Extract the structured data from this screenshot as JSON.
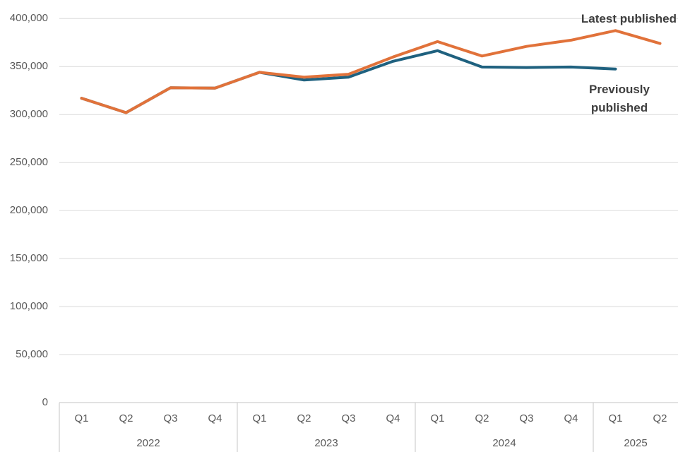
{
  "chart_data": {
    "type": "line",
    "x": [
      "Q1 2022",
      "Q2 2022",
      "Q3 2022",
      "Q4 2022",
      "Q1 2023",
      "Q2 2023",
      "Q3 2023",
      "Q4 2023",
      "Q1 2024",
      "Q2 2024",
      "Q3 2024",
      "Q4 2024",
      "Q1 2025",
      "Q2 2025"
    ],
    "x_groups": [
      {
        "year": "2022",
        "quarters": [
          "Q1",
          "Q2",
          "Q3",
          "Q4"
        ]
      },
      {
        "year": "2023",
        "quarters": [
          "Q1",
          "Q2",
          "Q3",
          "Q4"
        ]
      },
      {
        "year": "2024",
        "quarters": [
          "Q1",
          "Q2",
          "Q3",
          "Q4"
        ]
      },
      {
        "year": "2025",
        "quarters": [
          "Q1",
          "Q2"
        ]
      }
    ],
    "series": [
      {
        "name": "Latest published",
        "color": "#e1723a",
        "values": [
          317000,
          302000,
          328000,
          327500,
          344000,
          339000,
          342000,
          360000,
          376000,
          361000,
          371000,
          377500,
          387500,
          374000
        ]
      },
      {
        "name": "Previously published",
        "color": "#1f617f",
        "values": [
          317000,
          302000,
          328000,
          327500,
          344000,
          336000,
          339000,
          355500,
          366500,
          349500,
          349000,
          349500,
          347500,
          null
        ]
      }
    ],
    "ylim": [
      0,
      400000
    ],
    "ytick_step": 50000,
    "ytick_labels": [
      "0",
      "50,000",
      "100,000",
      "150,000",
      "200,000",
      "250,000",
      "300,000",
      "350,000",
      "400,000"
    ],
    "grid": true,
    "legend_position": "end-of-line-labels"
  },
  "labels": {
    "latest_published": "Latest published",
    "previously_published": "Previously\npublished"
  },
  "colors": {
    "latest_line": "#e1723a",
    "previous_line": "#1f617f",
    "gridline": "#dadada",
    "axis_line": "#c4c4c4",
    "tick_text": "#595959",
    "series_label_text": "#3f3f3f"
  }
}
